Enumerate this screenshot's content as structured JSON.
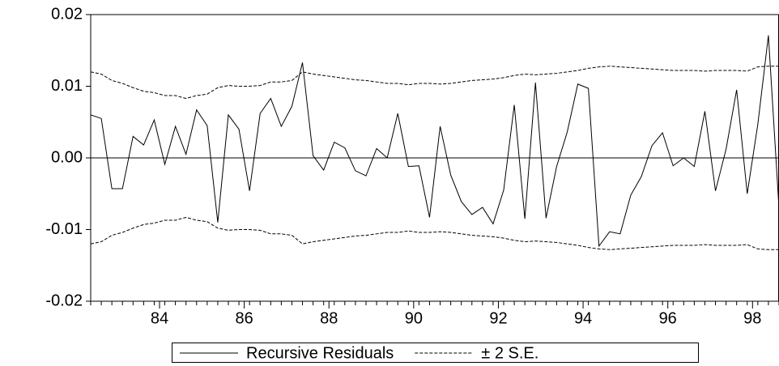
{
  "chart_data": {
    "type": "line",
    "x": [
      82.375,
      82.625,
      82.875,
      83.125,
      83.375,
      83.625,
      83.875,
      84.125,
      84.375,
      84.625,
      84.875,
      85.125,
      85.375,
      85.625,
      85.875,
      86.125,
      86.375,
      86.625,
      86.875,
      87.125,
      87.375,
      87.625,
      87.875,
      88.125,
      88.375,
      88.625,
      88.875,
      89.125,
      89.375,
      89.625,
      89.875,
      90.125,
      90.375,
      90.625,
      90.875,
      91.125,
      91.375,
      91.625,
      91.875,
      92.125,
      92.375,
      92.625,
      92.875,
      93.125,
      93.375,
      93.625,
      93.875,
      94.125,
      94.375,
      94.625,
      94.875,
      95.125,
      95.375,
      95.625,
      95.875,
      96.125,
      96.375,
      96.625,
      96.875,
      97.125,
      97.375,
      97.625,
      97.875,
      98.125,
      98.375,
      98.625
    ],
    "series": [
      {
        "name": "Recursive Residuals",
        "color": "#000000",
        "dashed": false,
        "values": [
          0.006,
          0.0055,
          -0.0043,
          -0.0043,
          0.003,
          0.0018,
          0.0053,
          -0.0009,
          0.0044,
          0.0005,
          0.0067,
          0.0045,
          -0.009,
          0.006,
          0.004,
          -0.0046,
          0.0062,
          0.0083,
          0.0044,
          0.0072,
          0.0133,
          0.0003,
          -0.0017,
          0.0022,
          0.0014,
          -0.0018,
          -0.0025,
          0.0013,
          0.0,
          0.0062,
          -0.0012,
          -0.0011,
          -0.0083,
          0.0044,
          -0.0024,
          -0.0061,
          -0.0079,
          -0.0069,
          -0.0092,
          -0.0045,
          0.0074,
          -0.0085,
          0.0105,
          -0.0084,
          -0.0012,
          0.0036,
          0.0103,
          0.0097,
          -0.0123,
          -0.0103,
          -0.0106,
          -0.0052,
          -0.0026,
          0.0017,
          0.0035,
          -0.0011,
          0.0,
          -0.0012,
          0.0065,
          -0.0046,
          0.0012,
          0.0095,
          -0.005,
          0.0047,
          0.0171,
          -0.007
        ]
      },
      {
        "name": "± 2 S.E.",
        "color": "#000000",
        "dashed": true,
        "values": [
          0.012,
          0.0117,
          0.0108,
          0.0104,
          0.0098,
          0.0093,
          0.0091,
          0.0087,
          0.0087,
          0.0083,
          0.0087,
          0.0089,
          0.0098,
          0.0101,
          0.01,
          0.01,
          0.0101,
          0.0106,
          0.0106,
          0.0108,
          0.012,
          0.0117,
          0.0115,
          0.0113,
          0.0111,
          0.0109,
          0.0108,
          0.0106,
          0.0104,
          0.0104,
          0.0102,
          0.0104,
          0.0104,
          0.0103,
          0.0104,
          0.0106,
          0.0108,
          0.0109,
          0.011,
          0.0112,
          0.0115,
          0.0117,
          0.0116,
          0.0117,
          0.0118,
          0.012,
          0.0122,
          0.0125,
          0.0127,
          0.0128,
          0.0127,
          0.0126,
          0.0125,
          0.0124,
          0.0123,
          0.0122,
          0.0122,
          0.0122,
          0.0121,
          0.0122,
          0.0122,
          0.0122,
          0.0121,
          0.0127,
          0.0128,
          0.0128
        ],
        "lower": [
          -0.012,
          -0.0117,
          -0.0108,
          -0.0104,
          -0.0098,
          -0.0093,
          -0.0091,
          -0.0087,
          -0.0087,
          -0.0083,
          -0.0087,
          -0.0089,
          -0.0098,
          -0.0101,
          -0.01,
          -0.01,
          -0.0101,
          -0.0106,
          -0.0106,
          -0.0108,
          -0.012,
          -0.0117,
          -0.0115,
          -0.0113,
          -0.0111,
          -0.0109,
          -0.0108,
          -0.0106,
          -0.0104,
          -0.0104,
          -0.0102,
          -0.0104,
          -0.0104,
          -0.0103,
          -0.0104,
          -0.0106,
          -0.0108,
          -0.0109,
          -0.011,
          -0.0112,
          -0.0115,
          -0.0117,
          -0.0116,
          -0.0117,
          -0.0118,
          -0.012,
          -0.0122,
          -0.0125,
          -0.0127,
          -0.0128,
          -0.0127,
          -0.0126,
          -0.0125,
          -0.0124,
          -0.0123,
          -0.0122,
          -0.0122,
          -0.0122,
          -0.0121,
          -0.0122,
          -0.0122,
          -0.0122,
          -0.0121,
          -0.0127,
          -0.0128,
          -0.0128
        ]
      }
    ],
    "xlim": [
      82.375,
      98.625
    ],
    "xticks": [
      84,
      86,
      88,
      90,
      92,
      94,
      96,
      98
    ],
    "ylim": [
      -0.02,
      0.02
    ],
    "yticks": [
      -0.02,
      -0.01,
      {
        "value": 0,
        "label": "0.00"
      },
      0.01,
      0.02
    ],
    "zero_line": true,
    "legend": "bottom"
  }
}
